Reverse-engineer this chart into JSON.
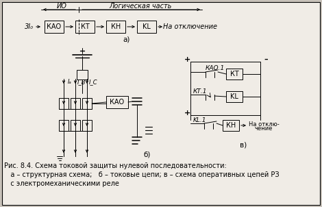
{
  "bg_color": "#e8e4de",
  "fig_bg": "#c8c2ba",
  "border_color": "#000000",
  "caption_line1": "Рис. 8.4. Схема токовой защиты нулевой последовательности:",
  "caption_line2": "   а – структурная схема;   б – токовые цепи; в – схема оперативных цепей РЗ",
  "caption_line3": "   с электромеханическими реле",
  "font_size_caption": 7.0,
  "font_size_box": 7.0,
  "inner_bg": "#f0ece6"
}
